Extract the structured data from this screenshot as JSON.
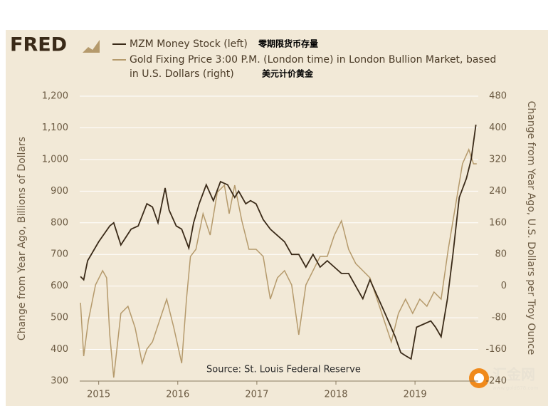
{
  "logo": "FRED",
  "watermark": {
    "name": "汇金网",
    "url": "www.gold678.com"
  },
  "chart_data": {
    "type": "line",
    "source": "Source:  St. Louis Federal Reserve",
    "annotations": [
      "零期限货币存量",
      "美元计价黄金"
    ],
    "ylabel": "Change from Year Ago, Billions of Dollars",
    "y2label": "Change from Year Ago, U.S. Dollars per Troy Ounce",
    "xlim": [
      2014.76,
      2019.8
    ],
    "xticks": [
      2015,
      2016,
      2017,
      2018,
      2019
    ],
    "ylim": [
      300,
      1200
    ],
    "yticks": [
      300,
      400,
      500,
      600,
      700,
      800,
      900,
      {
        "value": 1000,
        "label": "1,000"
      },
      {
        "value": 1100,
        "label": "1,100"
      },
      {
        "value": 1200,
        "label": "1,200"
      }
    ],
    "y2lim": [
      -240,
      480
    ],
    "y2ticks": [
      -240,
      -160,
      -80,
      0,
      80,
      160,
      240,
      320,
      400,
      480
    ],
    "grid": true,
    "series": [
      {
        "name": "MZM Money Stock (left)",
        "color": "#3a2a18",
        "x": [
          2014.77,
          2014.81,
          2014.86,
          2015.0,
          2015.14,
          2015.19,
          2015.28,
          2015.41,
          2015.5,
          2015.61,
          2015.68,
          2015.75,
          2015.84,
          2015.89,
          2015.98,
          2016.05,
          2016.14,
          2016.2,
          2016.27,
          2016.36,
          2016.45,
          2016.54,
          2016.63,
          2016.72,
          2016.77,
          2016.86,
          2016.92,
          2016.99,
          2017.08,
          2017.17,
          2017.26,
          2017.35,
          2017.44,
          2017.53,
          2017.62,
          2017.71,
          2017.8,
          2017.89,
          2017.98,
          2018.07,
          2018.16,
          2018.25,
          2018.34,
          2018.43,
          2018.52,
          2018.61,
          2018.68,
          2018.75,
          2018.82,
          2018.88,
          2018.95,
          2019.02,
          2019.11,
          2019.2,
          2019.26,
          2019.33,
          2019.41,
          2019.48,
          2019.56,
          2019.65,
          2019.71,
          2019.77
        ],
        "values": [
          630,
          620,
          680,
          740,
          790,
          800,
          730,
          780,
          790,
          860,
          850,
          800,
          910,
          840,
          790,
          780,
          720,
          800,
          860,
          920,
          870,
          930,
          920,
          880,
          900,
          860,
          870,
          860,
          810,
          780,
          760,
          740,
          700,
          700,
          660,
          700,
          660,
          680,
          660,
          640,
          640,
          600,
          560,
          620,
          570,
          520,
          480,
          440,
          390,
          380,
          370,
          470,
          480,
          490,
          470,
          440,
          560,
          700,
          880,
          940,
          1000,
          1110
        ]
      },
      {
        "name": "Gold Fixing Price 3:00 P.M. (London time) in London Bullion Market, based in U.S. Dollars (right)",
        "color": "#b59a6c",
        "axis": "y2",
        "x": [
          2014.77,
          2014.81,
          2014.87,
          2014.96,
          2015.05,
          2015.1,
          2015.14,
          2015.19,
          2015.28,
          2015.37,
          2015.46,
          2015.55,
          2015.61,
          2015.68,
          2015.77,
          2015.86,
          2015.95,
          2016.05,
          2016.11,
          2016.16,
          2016.23,
          2016.32,
          2016.41,
          2016.5,
          2016.59,
          2016.65,
          2016.72,
          2016.81,
          2016.9,
          2016.99,
          2017.08,
          2017.17,
          2017.26,
          2017.35,
          2017.44,
          2017.53,
          2017.62,
          2017.71,
          2017.8,
          2017.89,
          2017.98,
          2018.07,
          2018.16,
          2018.25,
          2018.34,
          2018.43,
          2018.52,
          2018.61,
          2018.7,
          2018.79,
          2018.88,
          2018.97,
          2019.06,
          2019.15,
          2019.24,
          2019.33,
          2019.42,
          2019.51,
          2019.6,
          2019.68,
          2019.74,
          2019.78
        ],
        "values": [
          -42,
          -177,
          -87,
          3,
          39,
          21,
          -123,
          -231,
          -69,
          -51,
          -105,
          -195,
          -159,
          -141,
          -87,
          -33,
          -105,
          -195,
          -33,
          75,
          93,
          183,
          129,
          237,
          255,
          183,
          255,
          165,
          93,
          93,
          75,
          -33,
          21,
          39,
          3,
          -123,
          3,
          39,
          75,
          75,
          129,
          165,
          93,
          57,
          39,
          21,
          -33,
          -87,
          -141,
          -69,
          -33,
          -69,
          -33,
          -51,
          -15,
          -33,
          93,
          201,
          309,
          345,
          309,
          309
        ]
      }
    ]
  }
}
